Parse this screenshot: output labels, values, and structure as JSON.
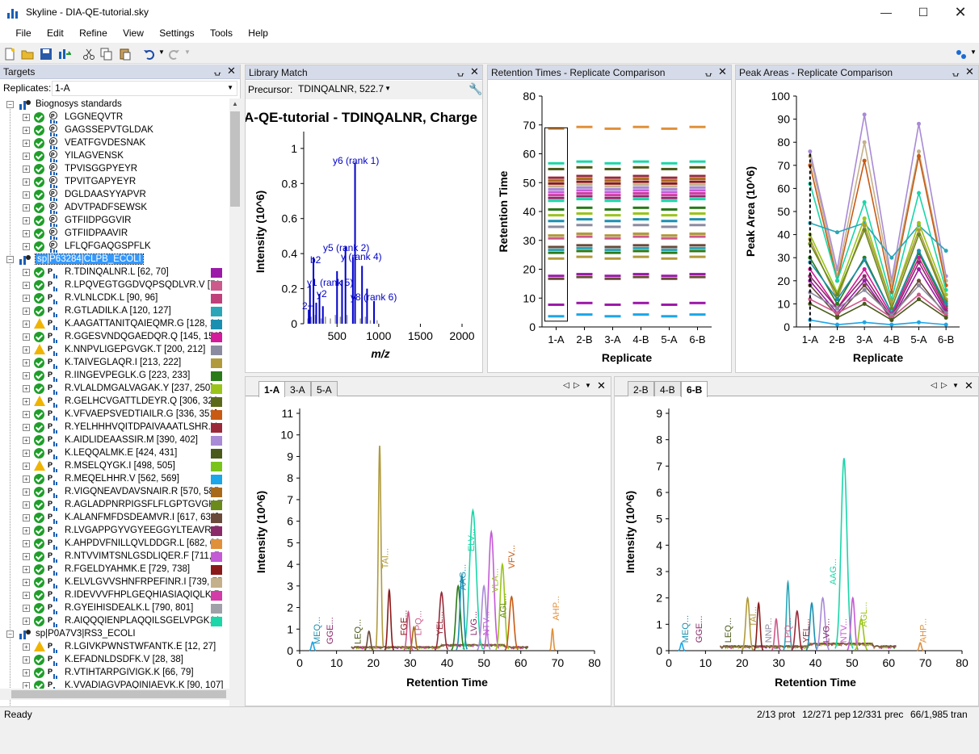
{
  "window": {
    "title": "Skyline - DIA-QE-tutorial.sky"
  },
  "menu": [
    "File",
    "Edit",
    "Refine",
    "View",
    "Settings",
    "Tools",
    "Help"
  ],
  "targets": {
    "title": "Targets",
    "replicates_label": "Replicates:",
    "replicate_value": "1-A",
    "rows": [
      {
        "type": "group",
        "label": "Biognosys standards"
      },
      {
        "type": "std",
        "label": "LGGNEQVTR"
      },
      {
        "type": "std",
        "label": "GAGSSEPVTGLDAK"
      },
      {
        "type": "std",
        "label": "VEATFGVDESNAK"
      },
      {
        "type": "std",
        "label": "YILAGVENSK"
      },
      {
        "type": "std",
        "label": "TPVISGGPYEYR"
      },
      {
        "type": "std",
        "label": "TPVITGAPYEYR"
      },
      {
        "type": "std",
        "label": "DGLDAASYYAPVR"
      },
      {
        "type": "std",
        "label": "ADVTPADFSEWSK"
      },
      {
        "type": "std",
        "label": "GTFIIDPGGVIR"
      },
      {
        "type": "std",
        "label": "GTFIIDPAAVIR"
      },
      {
        "type": "std",
        "label": "LFLQFGAQGSPFLK"
      },
      {
        "type": "protein",
        "label": "sp|P63284|CLPB_ECOLI"
      },
      {
        "type": "pep",
        "status": "ok",
        "label": "R.TDINQALNR.L [62, 70]",
        "color": "#9b1aa8"
      },
      {
        "type": "pep",
        "status": "ok",
        "label": "R.LPQVEGTGGDVQPSQDLVR.V [71",
        "color": "#cc5a8a"
      },
      {
        "type": "pep",
        "status": "ok",
        "label": "R.VLNLCDK.L [90, 96]",
        "color": "#c0407a"
      },
      {
        "type": "pep",
        "status": "ok",
        "label": "R.GTLADILK.A [120, 127]",
        "color": "#2aa6b8"
      },
      {
        "type": "pep",
        "status": "warn",
        "label": "K.AAGATTANITQAIEQMR.G [128, 14",
        "color": "#1b8fb0"
      },
      {
        "type": "pep",
        "status": "ok",
        "label": "R.GGESVNDQGAEDQR.Q [145, 158]",
        "color": "#d41a9a"
      },
      {
        "type": "pep",
        "status": "warn",
        "label": "K.NNPVLIGEPGVGK.T [200, 212]",
        "color": "#8a8aa0"
      },
      {
        "type": "pep",
        "status": "ok",
        "label": "K.TAIVEGLAQR.I [213, 222]",
        "color": "#b09a3c"
      },
      {
        "type": "pep",
        "status": "ok",
        "label": "R.IINGEVPEGLK.G [223, 233]",
        "color": "#2a7a1a"
      },
      {
        "type": "pep",
        "status": "ok",
        "label": "R.VLALDMGALVAGAK.Y [237, 250]",
        "color": "#9ac41a"
      },
      {
        "type": "pep",
        "status": "warn",
        "label": "R.GELHCVGATTLDEYR.Q [306, 320",
        "color": "#5a6a1a"
      },
      {
        "type": "pep",
        "status": "ok",
        "label": "K.VFVAEPSVEDTIAILR.G [336, 351]",
        "color": "#c85a14"
      },
      {
        "type": "pep",
        "status": "ok",
        "label": "R.YELHHHVQITDPAIVAAATLSHR.Y",
        "color": "#9a2a3a"
      },
      {
        "type": "pep",
        "status": "ok",
        "label": "K.AIDLIDEAASSIR.M [390, 402]",
        "color": "#a98ad6"
      },
      {
        "type": "pep",
        "status": "ok",
        "label": "K.LEQQALMK.E [424, 431]",
        "color": "#4a5a1a"
      },
      {
        "type": "pep",
        "status": "warn",
        "label": "R.MSELQYGK.I [498, 505]",
        "color": "#7ac41a"
      },
      {
        "type": "pep",
        "status": "ok",
        "label": "R.MEQELHHR.V [562, 569]",
        "color": "#1aa6e8"
      },
      {
        "type": "pep",
        "status": "ok",
        "label": "R.VIGQNEAVDAVSNAIR.R [570, 585",
        "color": "#a86a1a"
      },
      {
        "type": "pep",
        "status": "ok",
        "label": "R.AGLADPNRPIGSFLFLGPTGVGK.T",
        "color": "#6a8a1a"
      },
      {
        "type": "pep",
        "status": "ok",
        "label": "K.ALANFMFDSDEAMVR.I [617, 631]",
        "color": "#6a4a3a"
      },
      {
        "type": "pep",
        "status": "ok",
        "label": "R.LVGAPPGYVGYEEGGYLTEAVR.R",
        "color": "#8a2a6a"
      },
      {
        "type": "pep",
        "status": "ok",
        "label": "K.AHPDVFNILLQVLDDGR.L [682, 69",
        "color": "#e0903a"
      },
      {
        "type": "pep",
        "status": "ok",
        "label": "R.NTVVIMTSNLGSDLIQER.F [711, 7",
        "color": "#c45ad6"
      },
      {
        "type": "pep",
        "status": "ok",
        "label": "R.FGELDYAHMK.E [729, 738]",
        "color": "#8a1a1a"
      },
      {
        "type": "pep",
        "status": "ok",
        "label": "K.ELVLGVVSHNFRPEFINR.I [739, 75",
        "color": "#c4b08a"
      },
      {
        "type": "pep",
        "status": "ok",
        "label": "R.IDEVVVFHPLGEQHIASIAQIQLK.R",
        "color": "#d43aa8"
      },
      {
        "type": "pep",
        "status": "ok",
        "label": "R.GYEIHISDEALK.L [790, 801]",
        "color": "#a0a0a8"
      },
      {
        "type": "pep",
        "status": "ok",
        "label": "R.AIQQQIENPLAQQILSGELVPGK.V",
        "color": "#1ad6a8"
      },
      {
        "type": "protein2",
        "label": "sp|P0A7V3|RS3_ECOLI"
      },
      {
        "type": "pep",
        "status": "warn",
        "label": "R.LGIVKPWNSTWFANTK.E [12, 27]",
        "color": ""
      },
      {
        "type": "pep",
        "status": "ok",
        "label": "K.EFADNLDSDFK.V [28, 38]",
        "color": ""
      },
      {
        "type": "pep",
        "status": "ok",
        "label": "R.VTIHTARPGIVIGK.K [66, 79]",
        "color": ""
      },
      {
        "type": "pep",
        "status": "ok",
        "label": "K.VVADIAGVPAQINIAEVK.K [90, 107]",
        "color": ""
      }
    ]
  },
  "library_match": {
    "title": "Library Match",
    "precursor_label": "Precursor:",
    "precursor_value": "TDINQALNR, 522.7",
    "plot_title": "A-QE-tutorial - TDINQALNR, Charge",
    "chart_data": {
      "type": "bar",
      "xlabel": "m/z",
      "ylabel": "Intensity (10^6)",
      "xlim": [
        100,
        2000
      ],
      "ylim": [
        0,
        1.05
      ],
      "xticks": [
        500,
        1000,
        1500,
        2000
      ],
      "yticks": [
        0,
        0.2,
        0.4,
        0.6,
        0.8,
        1
      ],
      "annotations": [
        {
          "label": "y6 (rank 1)",
          "x": 716,
          "y": 0.92
        },
        {
          "label": "y5 (rank 2)",
          "x": 601,
          "y": 0.44
        },
        {
          "label": "y (rank 4)",
          "x": 690,
          "y": 0.38
        },
        {
          "label": "b2",
          "x": 217,
          "y": 0.38
        },
        {
          "label": "y1 (rank 5)",
          "x": 175,
          "y": 0.22
        },
        {
          "label": "y2",
          "x": 289,
          "y": 0.17
        },
        {
          "label": "y8 (rank 6)",
          "x": 944,
          "y": 0.13
        },
        {
          "label": "2+",
          "x": 160,
          "y": 0.08
        }
      ]
    }
  },
  "rt_panel": {
    "title": "Retention Times - Replicate Comparison",
    "chart_data": {
      "type": "box",
      "categories": [
        "1-A",
        "2-B",
        "3-A",
        "4-B",
        "5-A",
        "6-B"
      ],
      "xlabel": "Replicate",
      "ylabel": "Retention Time",
      "ylim": [
        0,
        80
      ],
      "yticks": [
        0,
        10,
        20,
        30,
        40,
        50,
        60,
        70,
        80
      ]
    }
  },
  "pa_panel": {
    "title": "Peak Areas - Replicate Comparison",
    "chart_data": {
      "type": "line",
      "categories": [
        "1-A",
        "2-B",
        "3-A",
        "4-B",
        "5-A",
        "6-B"
      ],
      "xlabel": "Replicate",
      "ylabel": "Peak Area (10^6)",
      "ylim": [
        0,
        100
      ],
      "yticks": [
        0,
        10,
        20,
        30,
        40,
        50,
        60,
        70,
        80,
        90,
        100
      ]
    }
  },
  "chrom1": {
    "tabs": [
      "1-A",
      "3-A",
      "5-A"
    ],
    "chart_data": {
      "type": "line",
      "xlabel": "Retention Time",
      "ylabel": "Intensity (10^6)",
      "xlim": [
        0,
        80
      ],
      "ylim": [
        0,
        11
      ],
      "xticks": [
        0,
        10,
        20,
        30,
        40,
        50,
        60,
        70,
        80
      ],
      "yticks": [
        0,
        1,
        2,
        3,
        4,
        5,
        6,
        7,
        8,
        9,
        10,
        11
      ],
      "peak_labels": [
        "MEQ...",
        "GGE...",
        "LEQ...",
        "TAI...",
        "FGE...",
        "LPQ...",
        "YEL...",
        "AAG...",
        "LVG...",
        "ELV...",
        "NTV...",
        "VLA...",
        "AGL...",
        "VFV...",
        "AHP..."
      ]
    }
  },
  "chrom2": {
    "tabs": [
      "2-B",
      "4-B",
      "6-B"
    ],
    "chart_data": {
      "type": "line",
      "xlabel": "Retention Time",
      "ylabel": "Intensity (10^6)",
      "xlim": [
        0,
        80
      ],
      "ylim": [
        0,
        9
      ],
      "xticks": [
        0,
        10,
        20,
        30,
        40,
        50,
        60,
        70,
        80
      ],
      "yticks": [
        0,
        1,
        2,
        3,
        4,
        5,
        6,
        7,
        8,
        9
      ],
      "peak_labels": [
        "MEQ...",
        "GGE...",
        "LEQ...",
        "TAI...",
        "NNP...",
        "LPQ...",
        "YEL...",
        "AAG...",
        "LVG...",
        "NTV...",
        "AGL...",
        "AHP..."
      ]
    }
  },
  "status": {
    "left": "Ready",
    "prot": "2/13 prot",
    "pep": "12/271 pep",
    "prec": "12/331 prec",
    "tran": "66/1,985 tran"
  },
  "colors": {
    "panel_header": "#d6dbe9",
    "selection": "#3399ff"
  }
}
